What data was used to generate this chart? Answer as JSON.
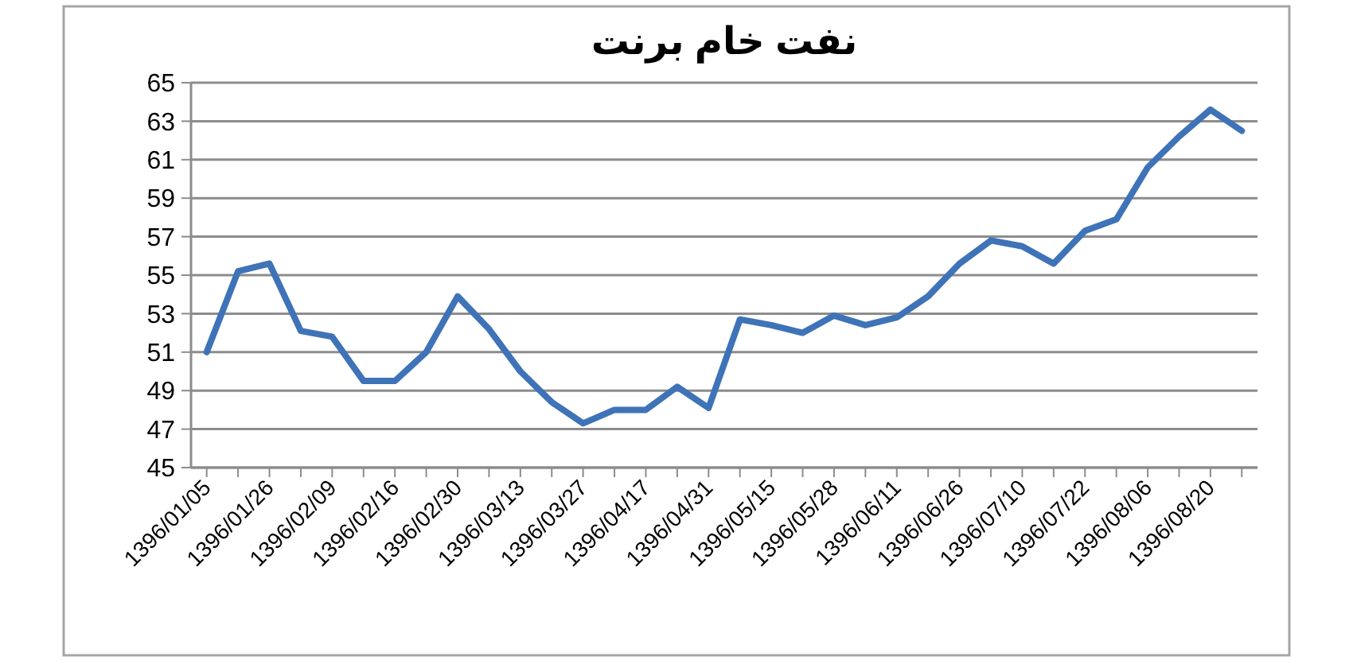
{
  "chart_data": {
    "type": "line",
    "title": "نفت خام برنت",
    "categories": [
      "1396/01/05",
      null,
      "1396/01/26",
      null,
      "1396/02/09",
      null,
      "1396/02/16",
      null,
      "1396/02/30",
      null,
      "1396/03/13",
      null,
      "1396/03/27",
      null,
      "1396/04/17",
      null,
      "1396/04/31",
      null,
      "1396/05/15",
      null,
      "1396/05/28",
      null,
      "1396/06/11",
      null,
      "1396/06/26",
      null,
      "1396/07/10",
      null,
      "1396/07/22",
      null,
      "1396/08/06",
      null,
      "1396/08/20",
      null
    ],
    "series": [
      {
        "color": "#3f73b8",
        "values": [
          51.0,
          55.2,
          55.6,
          52.1,
          51.8,
          49.5,
          49.5,
          51.0,
          53.9,
          52.2,
          50.0,
          48.4,
          47.3,
          48.0,
          48.0,
          49.2,
          48.1,
          52.7,
          52.4,
          52.0,
          52.9,
          52.4,
          52.8,
          53.9,
          55.6,
          56.8,
          56.5,
          55.6,
          57.3,
          57.9,
          60.6,
          62.2,
          63.6,
          62.5
        ]
      }
    ],
    "ylim": [
      45,
      65
    ],
    "yticks": [
      45,
      47,
      49,
      51,
      53,
      55,
      57,
      59,
      61,
      63,
      65
    ],
    "grid": "y",
    "marker": "none",
    "line_style": "solid"
  }
}
